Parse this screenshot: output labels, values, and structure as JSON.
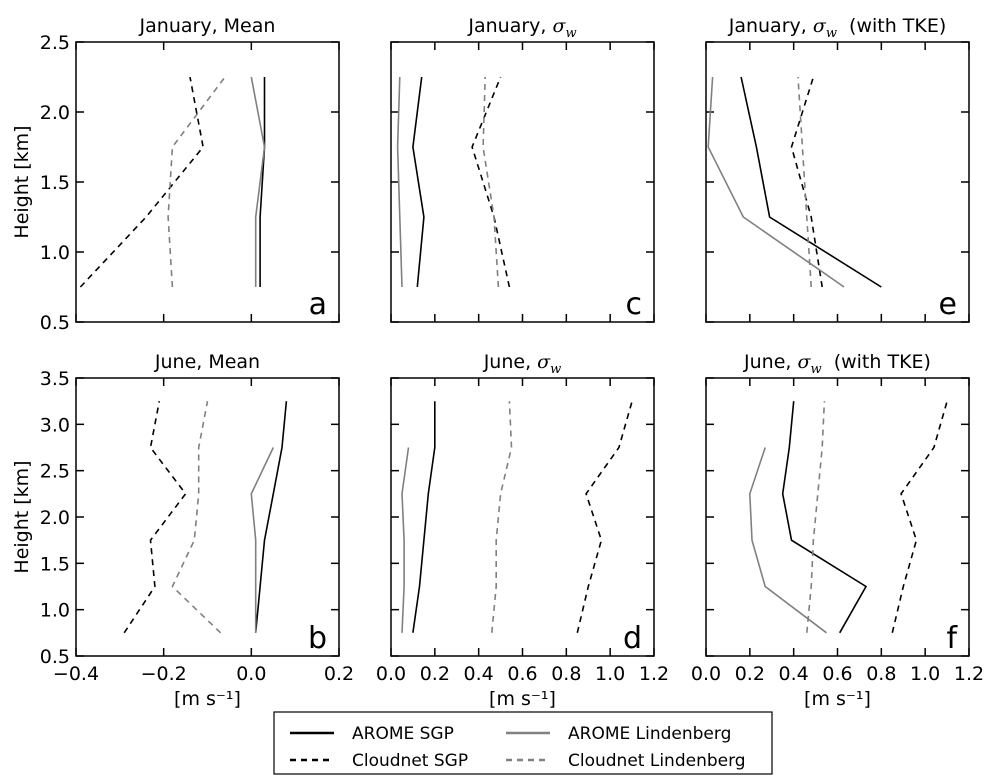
{
  "chart_data": {
    "type": "line",
    "panels": [
      {
        "id": "a",
        "title": "January, Mean",
        "title_math": "",
        "title_suffix": "",
        "letter": "a",
        "xlim": [
          -0.4,
          0.2
        ],
        "ylim": [
          0.5,
          2.5
        ],
        "ylabel": "Height [km]",
        "xlabel": "",
        "xticks": [],
        "yticks": [
          "0.5",
          "1.0",
          "1.5",
          "2.0",
          "2.5"
        ],
        "series": [
          {
            "key": "arome_sgp",
            "x": [
              0.02,
              0.02,
              0.03,
              0.03
            ],
            "y": [
              0.75,
              1.25,
              1.75,
              2.25
            ]
          },
          {
            "key": "cloudnet_sgp",
            "x": [
              -0.39,
              -0.24,
              -0.11,
              -0.14
            ],
            "y": [
              0.75,
              1.25,
              1.75,
              2.25
            ]
          },
          {
            "key": "arome_lind",
            "x": [
              0.01,
              0.01,
              0.03,
              0.0
            ],
            "y": [
              0.75,
              1.25,
              1.75,
              2.25
            ]
          },
          {
            "key": "cloudnet_lind",
            "x": [
              -0.18,
              -0.19,
              -0.18,
              -0.06
            ],
            "y": [
              0.75,
              1.25,
              1.75,
              2.25
            ]
          }
        ]
      },
      {
        "id": "c",
        "title": "January, ",
        "title_math": "σ",
        "title_sub": "w",
        "title_suffix": "",
        "letter": "c",
        "xlim": [
          0.0,
          1.2
        ],
        "ylim": [
          0.5,
          2.5
        ],
        "ylabel": "",
        "xlabel": "",
        "xticks": [],
        "yticks": [],
        "series": [
          {
            "key": "arome_sgp",
            "x": [
              0.12,
              0.15,
              0.1,
              0.14
            ],
            "y": [
              0.75,
              1.25,
              1.75,
              2.25
            ]
          },
          {
            "key": "cloudnet_sgp",
            "x": [
              0.54,
              0.47,
              0.37,
              0.5
            ],
            "y": [
              0.75,
              1.25,
              1.75,
              2.25
            ]
          },
          {
            "key": "arome_lind",
            "x": [
              0.05,
              0.04,
              0.03,
              0.04
            ],
            "y": [
              0.75,
              1.25,
              1.75,
              2.25
            ]
          },
          {
            "key": "cloudnet_lind",
            "x": [
              0.49,
              0.47,
              0.42,
              0.43
            ],
            "y": [
              0.75,
              1.25,
              1.75,
              2.25
            ]
          }
        ]
      },
      {
        "id": "e",
        "title": "January, ",
        "title_math": "σ",
        "title_sub": "w",
        "title_suffix": " (with TKE)",
        "letter": "e",
        "xlim": [
          0.0,
          1.2
        ],
        "ylim": [
          0.5,
          2.5
        ],
        "ylabel": "",
        "xlabel": "",
        "xticks": [],
        "yticks": [],
        "series": [
          {
            "key": "arome_sgp",
            "x": [
              0.8,
              0.29,
              0.23,
              0.16
            ],
            "y": [
              0.75,
              1.25,
              1.75,
              2.25
            ]
          },
          {
            "key": "cloudnet_sgp",
            "x": [
              0.53,
              0.48,
              0.39,
              0.49
            ],
            "y": [
              0.75,
              1.25,
              1.75,
              2.25
            ]
          },
          {
            "key": "arome_lind",
            "x": [
              0.63,
              0.17,
              0.01,
              0.03
            ],
            "y": [
              0.75,
              1.25,
              1.75,
              2.25
            ]
          },
          {
            "key": "cloudnet_lind",
            "x": [
              0.48,
              0.46,
              0.44,
              0.42
            ],
            "y": [
              0.75,
              1.25,
              1.75,
              2.25
            ]
          }
        ]
      },
      {
        "id": "b",
        "title": "June, Mean",
        "title_math": "",
        "title_suffix": "",
        "letter": "b",
        "xlim": [
          -0.4,
          0.2
        ],
        "ylim": [
          0.5,
          3.5
        ],
        "ylabel": "Height [km]",
        "xlabel": "[m s⁻¹]",
        "xticks": [
          "−0.4",
          "−0.2",
          "0.0",
          "0.2"
        ],
        "yticks": [
          "0.5",
          "1.0",
          "1.5",
          "2.0",
          "2.5",
          "3.0",
          "3.5"
        ],
        "series": [
          {
            "key": "arome_sgp",
            "x": [
              0.01,
              0.02,
              0.03,
              0.05,
              0.07,
              0.08
            ],
            "y": [
              0.75,
              1.25,
              1.75,
              2.25,
              2.75,
              3.25
            ]
          },
          {
            "key": "cloudnet_sgp",
            "x": [
              -0.29,
              -0.22,
              -0.23,
              -0.15,
              -0.23,
              -0.21
            ],
            "y": [
              0.75,
              1.25,
              1.75,
              2.25,
              2.75,
              3.25
            ]
          },
          {
            "key": "arome_lind",
            "x": [
              0.01,
              0.01,
              0.01,
              0.0,
              0.05
            ],
            "y": [
              0.75,
              1.25,
              1.75,
              2.25,
              2.75
            ]
          },
          {
            "key": "cloudnet_lind",
            "x": [
              -0.07,
              -0.18,
              -0.13,
              -0.12,
              -0.12,
              -0.1
            ],
            "y": [
              0.75,
              1.25,
              1.75,
              2.25,
              2.75,
              3.25
            ]
          }
        ]
      },
      {
        "id": "d",
        "title": "June, ",
        "title_math": "σ",
        "title_sub": "w",
        "title_suffix": "",
        "letter": "d",
        "xlim": [
          0.0,
          1.2
        ],
        "ylim": [
          0.5,
          3.5
        ],
        "ylabel": "",
        "xlabel": "[m s⁻¹]",
        "xticks": [
          "0.0",
          "0.2",
          "0.4",
          "0.6",
          "0.8",
          "1.0",
          "1.2"
        ],
        "yticks": [],
        "series": [
          {
            "key": "arome_sgp",
            "x": [
              0.1,
              0.13,
              0.15,
              0.17,
              0.2,
              0.2
            ],
            "y": [
              0.75,
              1.25,
              1.75,
              2.25,
              2.75,
              3.25
            ]
          },
          {
            "key": "cloudnet_sgp",
            "x": [
              0.85,
              0.9,
              0.96,
              0.89,
              1.04,
              1.1
            ],
            "y": [
              0.75,
              1.25,
              1.75,
              2.25,
              2.75,
              3.25
            ]
          },
          {
            "key": "arome_lind",
            "x": [
              0.05,
              0.06,
              0.06,
              0.05,
              0.08
            ],
            "y": [
              0.75,
              1.25,
              1.75,
              2.25,
              2.75
            ]
          },
          {
            "key": "cloudnet_lind",
            "x": [
              0.46,
              0.48,
              0.48,
              0.5,
              0.55,
              0.54
            ],
            "y": [
              0.75,
              1.25,
              1.75,
              2.25,
              2.75,
              3.25
            ]
          }
        ]
      },
      {
        "id": "f",
        "title": "June, ",
        "title_math": "σ",
        "title_sub": "w",
        "title_suffix": " (with TKE)",
        "letter": "f",
        "xlim": [
          0.0,
          1.2
        ],
        "ylim": [
          0.5,
          3.5
        ],
        "ylabel": "",
        "xlabel": "[m s⁻¹]",
        "xticks": [
          "0.0",
          "0.2",
          "0.4",
          "0.6",
          "0.8",
          "1.0",
          "1.2"
        ],
        "yticks": [],
        "series": [
          {
            "key": "arome_sgp",
            "x": [
              0.61,
              0.73,
              0.39,
              0.35,
              0.38,
              0.4
            ],
            "y": [
              0.75,
              1.25,
              1.75,
              2.25,
              2.75,
              3.25
            ]
          },
          {
            "key": "cloudnet_sgp",
            "x": [
              0.85,
              0.9,
              0.96,
              0.89,
              1.04,
              1.1
            ],
            "y": [
              0.75,
              1.25,
              1.75,
              2.25,
              2.75,
              3.25
            ]
          },
          {
            "key": "arome_lind",
            "x": [
              0.55,
              0.27,
              0.21,
              0.2,
              0.27
            ],
            "y": [
              0.75,
              1.25,
              1.75,
              2.25,
              2.75
            ]
          },
          {
            "key": "cloudnet_lind",
            "x": [
              0.46,
              0.48,
              0.49,
              0.51,
              0.53,
              0.54
            ],
            "y": [
              0.75,
              1.25,
              1.75,
              2.25,
              2.75,
              3.25
            ]
          }
        ]
      }
    ],
    "series_styles": {
      "arome_sgp": {
        "name": "AROME SGP",
        "color": "#000000",
        "dash": ""
      },
      "cloudnet_sgp": {
        "name": "Cloudnet SGP",
        "color": "#000000",
        "dash": "6,5"
      },
      "arome_lind": {
        "name": "AROME Lindenberg",
        "color": "#808080",
        "dash": ""
      },
      "cloudnet_lind": {
        "name": "Cloudnet Lindenberg",
        "color": "#808080",
        "dash": "6,5"
      }
    },
    "legend": {
      "placement": "bottom-center",
      "order": [
        "arome_sgp",
        "arome_lind",
        "cloudnet_sgp",
        "cloudnet_lind"
      ]
    }
  }
}
